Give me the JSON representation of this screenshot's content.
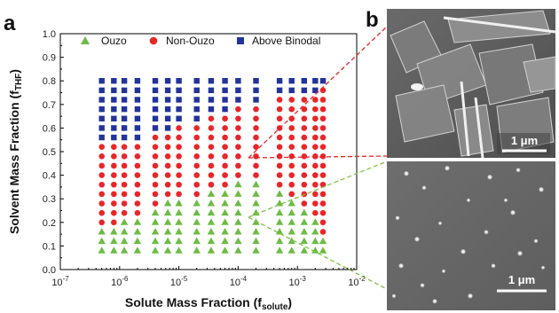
{
  "panel_labels": {
    "a": "a",
    "b": "b"
  },
  "chart_data": {
    "type": "scatter",
    "title": "",
    "xlabel": "Solute Mass Fraction (f",
    "xlabel_sub": "solute",
    "xlabel_close": ")",
    "ylabel": "Solvent Mass Fraction (f",
    "ylabel_sub": "THF",
    "ylabel_close": ")",
    "xscale": "log",
    "xlim_exp": [
      -7,
      -2
    ],
    "ylim": [
      0.0,
      1.0
    ],
    "yticks": [
      "0.0",
      "0.1",
      "0.2",
      "0.3",
      "0.4",
      "0.5",
      "0.6",
      "0.7",
      "0.8",
      "0.9",
      "1.0"
    ],
    "xticks": [
      {
        "exp": -7,
        "base": "10",
        "sup": "-7"
      },
      {
        "exp": -6,
        "base": "10",
        "sup": "-6"
      },
      {
        "exp": -5,
        "base": "10",
        "sup": "-5"
      },
      {
        "exp": -4,
        "base": "10",
        "sup": "-4"
      },
      {
        "exp": -3,
        "base": "10",
        "sup": "-3"
      },
      {
        "exp": -2,
        "base": "10",
        "sup": "-2"
      }
    ],
    "legend_position": "top",
    "grid": false,
    "columns_x": [
      5e-07,
      8e-07,
      1.2e-06,
      2e-06,
      4e-06,
      6.5e-06,
      1e-05,
      2e-05,
      3.5e-05,
      6e-05,
      0.0001,
      0.0002,
      0.0005,
      0.0008,
      0.0013,
      0.002,
      0.0027
    ],
    "y_grid": [
      0.08,
      0.12,
      0.16,
      0.2,
      0.24,
      0.28,
      0.32,
      0.36,
      0.4,
      0.44,
      0.48,
      0.52,
      0.56,
      0.6,
      0.64,
      0.68,
      0.72,
      0.76,
      0.8
    ],
    "ouzo_top": [
      0.16,
      0.16,
      0.2,
      0.2,
      0.24,
      0.28,
      0.28,
      0.28,
      0.32,
      0.32,
      0.36,
      0.36,
      0.32,
      0.28,
      0.24,
      0.2,
      0.12
    ],
    "binodal_low": [
      0.56,
      0.56,
      0.56,
      0.56,
      0.6,
      0.6,
      0.64,
      0.64,
      0.68,
      0.68,
      0.72,
      0.72,
      0.76,
      0.76,
      0.76,
      0.76,
      0.8
    ],
    "series": [
      {
        "name": "Ouzo",
        "marker": "triangle",
        "color": "#6dbb45"
      },
      {
        "name": "Non-Ouzo",
        "marker": "circle",
        "color": "#e8262a"
      },
      {
        "name": "Above Binodal",
        "marker": "square",
        "color": "#23339a"
      }
    ]
  },
  "micrographs": [
    {
      "scale_bar": "1 μm"
    },
    {
      "scale_bar": "1 μm"
    }
  ],
  "colors": {
    "ouzo": "#6dbb45",
    "non_ouzo": "#e8262a",
    "binodal": "#23339a",
    "red_dash": "#e8262a",
    "green_dash": "#7cc242"
  }
}
